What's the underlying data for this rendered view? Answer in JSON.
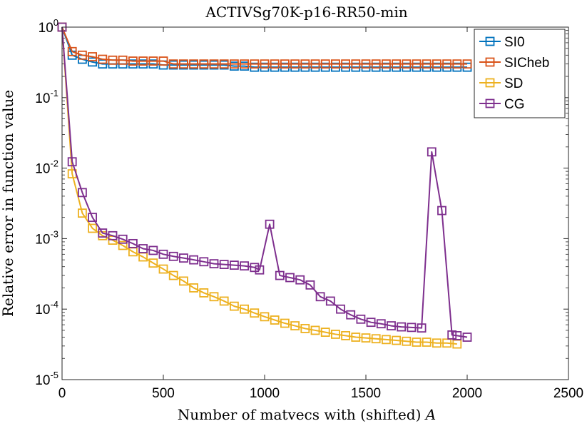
{
  "chart_data": {
    "type": "line",
    "title": "ACTIVSg70K-p16-RR50-min",
    "xlabel": "Number of matvecs with (shifted) ",
    "xlabel_symbol": "A",
    "ylabel": "Relative error in function value",
    "yscale": "log",
    "xlim": [
      0,
      2500
    ],
    "ylim": [
      1e-05,
      1
    ],
    "xticks": [
      0,
      500,
      1000,
      1500,
      2000,
      2500
    ],
    "xtick_labels": [
      "0",
      "500",
      "1000",
      "1500",
      "2000",
      "2500"
    ],
    "yticks": [
      1e-05,
      0.0001,
      0.001,
      0.01,
      0.1,
      1
    ],
    "ytick_labels": [
      {
        "base": "10",
        "exp": "-5"
      },
      {
        "base": "10",
        "exp": "-4"
      },
      {
        "base": "10",
        "exp": "-3"
      },
      {
        "base": "10",
        "exp": "-2"
      },
      {
        "base": "10",
        "exp": "-1"
      },
      {
        "base": "10",
        "exp": "0"
      }
    ],
    "legend_position": "top-right",
    "marker": "square",
    "series": [
      {
        "name": "SI0",
        "color": "#0072BD",
        "x": [
          0,
          50,
          100,
          150,
          200,
          250,
          300,
          350,
          400,
          450,
          500,
          550,
          600,
          650,
          700,
          750,
          800,
          850,
          900,
          950,
          1000,
          1050,
          1100,
          1150,
          1200,
          1250,
          1300,
          1350,
          1400,
          1450,
          1500,
          1550,
          1600,
          1650,
          1700,
          1750,
          1800,
          1850,
          1900,
          1950,
          2000
        ],
        "y": [
          1.0,
          0.4,
          0.35,
          0.32,
          0.3,
          0.3,
          0.3,
          0.3,
          0.3,
          0.3,
          0.29,
          0.29,
          0.29,
          0.29,
          0.29,
          0.29,
          0.29,
          0.28,
          0.28,
          0.27,
          0.27,
          0.27,
          0.27,
          0.27,
          0.27,
          0.27,
          0.27,
          0.27,
          0.27,
          0.27,
          0.27,
          0.27,
          0.27,
          0.27,
          0.27,
          0.27,
          0.27,
          0.27,
          0.27,
          0.27,
          0.27
        ]
      },
      {
        "name": "SICheb",
        "color": "#D95319",
        "x": [
          0,
          50,
          100,
          150,
          200,
          250,
          300,
          350,
          400,
          450,
          500,
          550,
          600,
          650,
          700,
          750,
          800,
          850,
          900,
          950,
          1000,
          1050,
          1100,
          1150,
          1200,
          1250,
          1300,
          1350,
          1400,
          1450,
          1500,
          1550,
          1600,
          1650,
          1700,
          1750,
          1800,
          1850,
          1900,
          1950,
          2000
        ],
        "y": [
          1.0,
          0.45,
          0.4,
          0.38,
          0.35,
          0.34,
          0.34,
          0.33,
          0.33,
          0.33,
          0.33,
          0.3,
          0.3,
          0.3,
          0.3,
          0.3,
          0.3,
          0.3,
          0.3,
          0.3,
          0.3,
          0.3,
          0.3,
          0.3,
          0.3,
          0.3,
          0.3,
          0.3,
          0.3,
          0.3,
          0.3,
          0.3,
          0.3,
          0.3,
          0.3,
          0.3,
          0.3,
          0.3,
          0.3,
          0.3,
          0.3
        ]
      },
      {
        "name": "SD",
        "color": "#EDB120",
        "x": [
          0,
          50,
          100,
          150,
          200,
          250,
          300,
          350,
          400,
          450,
          500,
          550,
          600,
          650,
          700,
          750,
          800,
          850,
          900,
          950,
          1000,
          1050,
          1100,
          1150,
          1200,
          1250,
          1300,
          1350,
          1400,
          1450,
          1500,
          1550,
          1600,
          1650,
          1700,
          1750,
          1800,
          1850,
          1900,
          1950
        ],
        "y": [
          1.0,
          0.0083,
          0.0023,
          0.0014,
          0.0011,
          0.00095,
          0.0008,
          0.00065,
          0.00055,
          0.00045,
          0.00037,
          0.0003,
          0.00025,
          0.0002,
          0.00017,
          0.00015,
          0.00013,
          0.00011,
          0.0001,
          8.8e-05,
          7.8e-05,
          7e-05,
          6.3e-05,
          5.8e-05,
          5.3e-05,
          5e-05,
          4.7e-05,
          4.4e-05,
          4.2e-05,
          4e-05,
          3.9e-05,
          3.8e-05,
          3.7e-05,
          3.6e-05,
          3.5e-05,
          3.4e-05,
          3.4e-05,
          3.3e-05,
          3.3e-05,
          3.2e-05
        ]
      },
      {
        "name": "CG",
        "color": "#7E2F8E",
        "x": [
          0,
          50,
          100,
          150,
          200,
          250,
          300,
          350,
          400,
          450,
          500,
          550,
          600,
          650,
          700,
          750,
          800,
          850,
          900,
          950,
          975,
          1025,
          1075,
          1125,
          1175,
          1225,
          1275,
          1325,
          1375,
          1425,
          1475,
          1525,
          1575,
          1625,
          1675,
          1725,
          1775,
          1825,
          1875,
          1925,
          1950,
          2000
        ],
        "y": [
          1.0,
          0.0123,
          0.0045,
          0.002,
          0.0012,
          0.0011,
          0.00098,
          0.00085,
          0.00072,
          0.00068,
          0.0006,
          0.00056,
          0.00053,
          0.0005,
          0.00047,
          0.00044,
          0.00043,
          0.00042,
          0.00041,
          0.00039,
          0.00036,
          0.0016,
          0.0003,
          0.00028,
          0.00026,
          0.00022,
          0.00015,
          0.00013,
          0.0001,
          8.3e-05,
          7.2e-05,
          6.5e-05,
          6.2e-05,
          5.8e-05,
          5.6e-05,
          5.5e-05,
          5.4e-05,
          0.017,
          0.0025,
          4.3e-05,
          4.2e-05,
          4e-05
        ]
      }
    ]
  }
}
